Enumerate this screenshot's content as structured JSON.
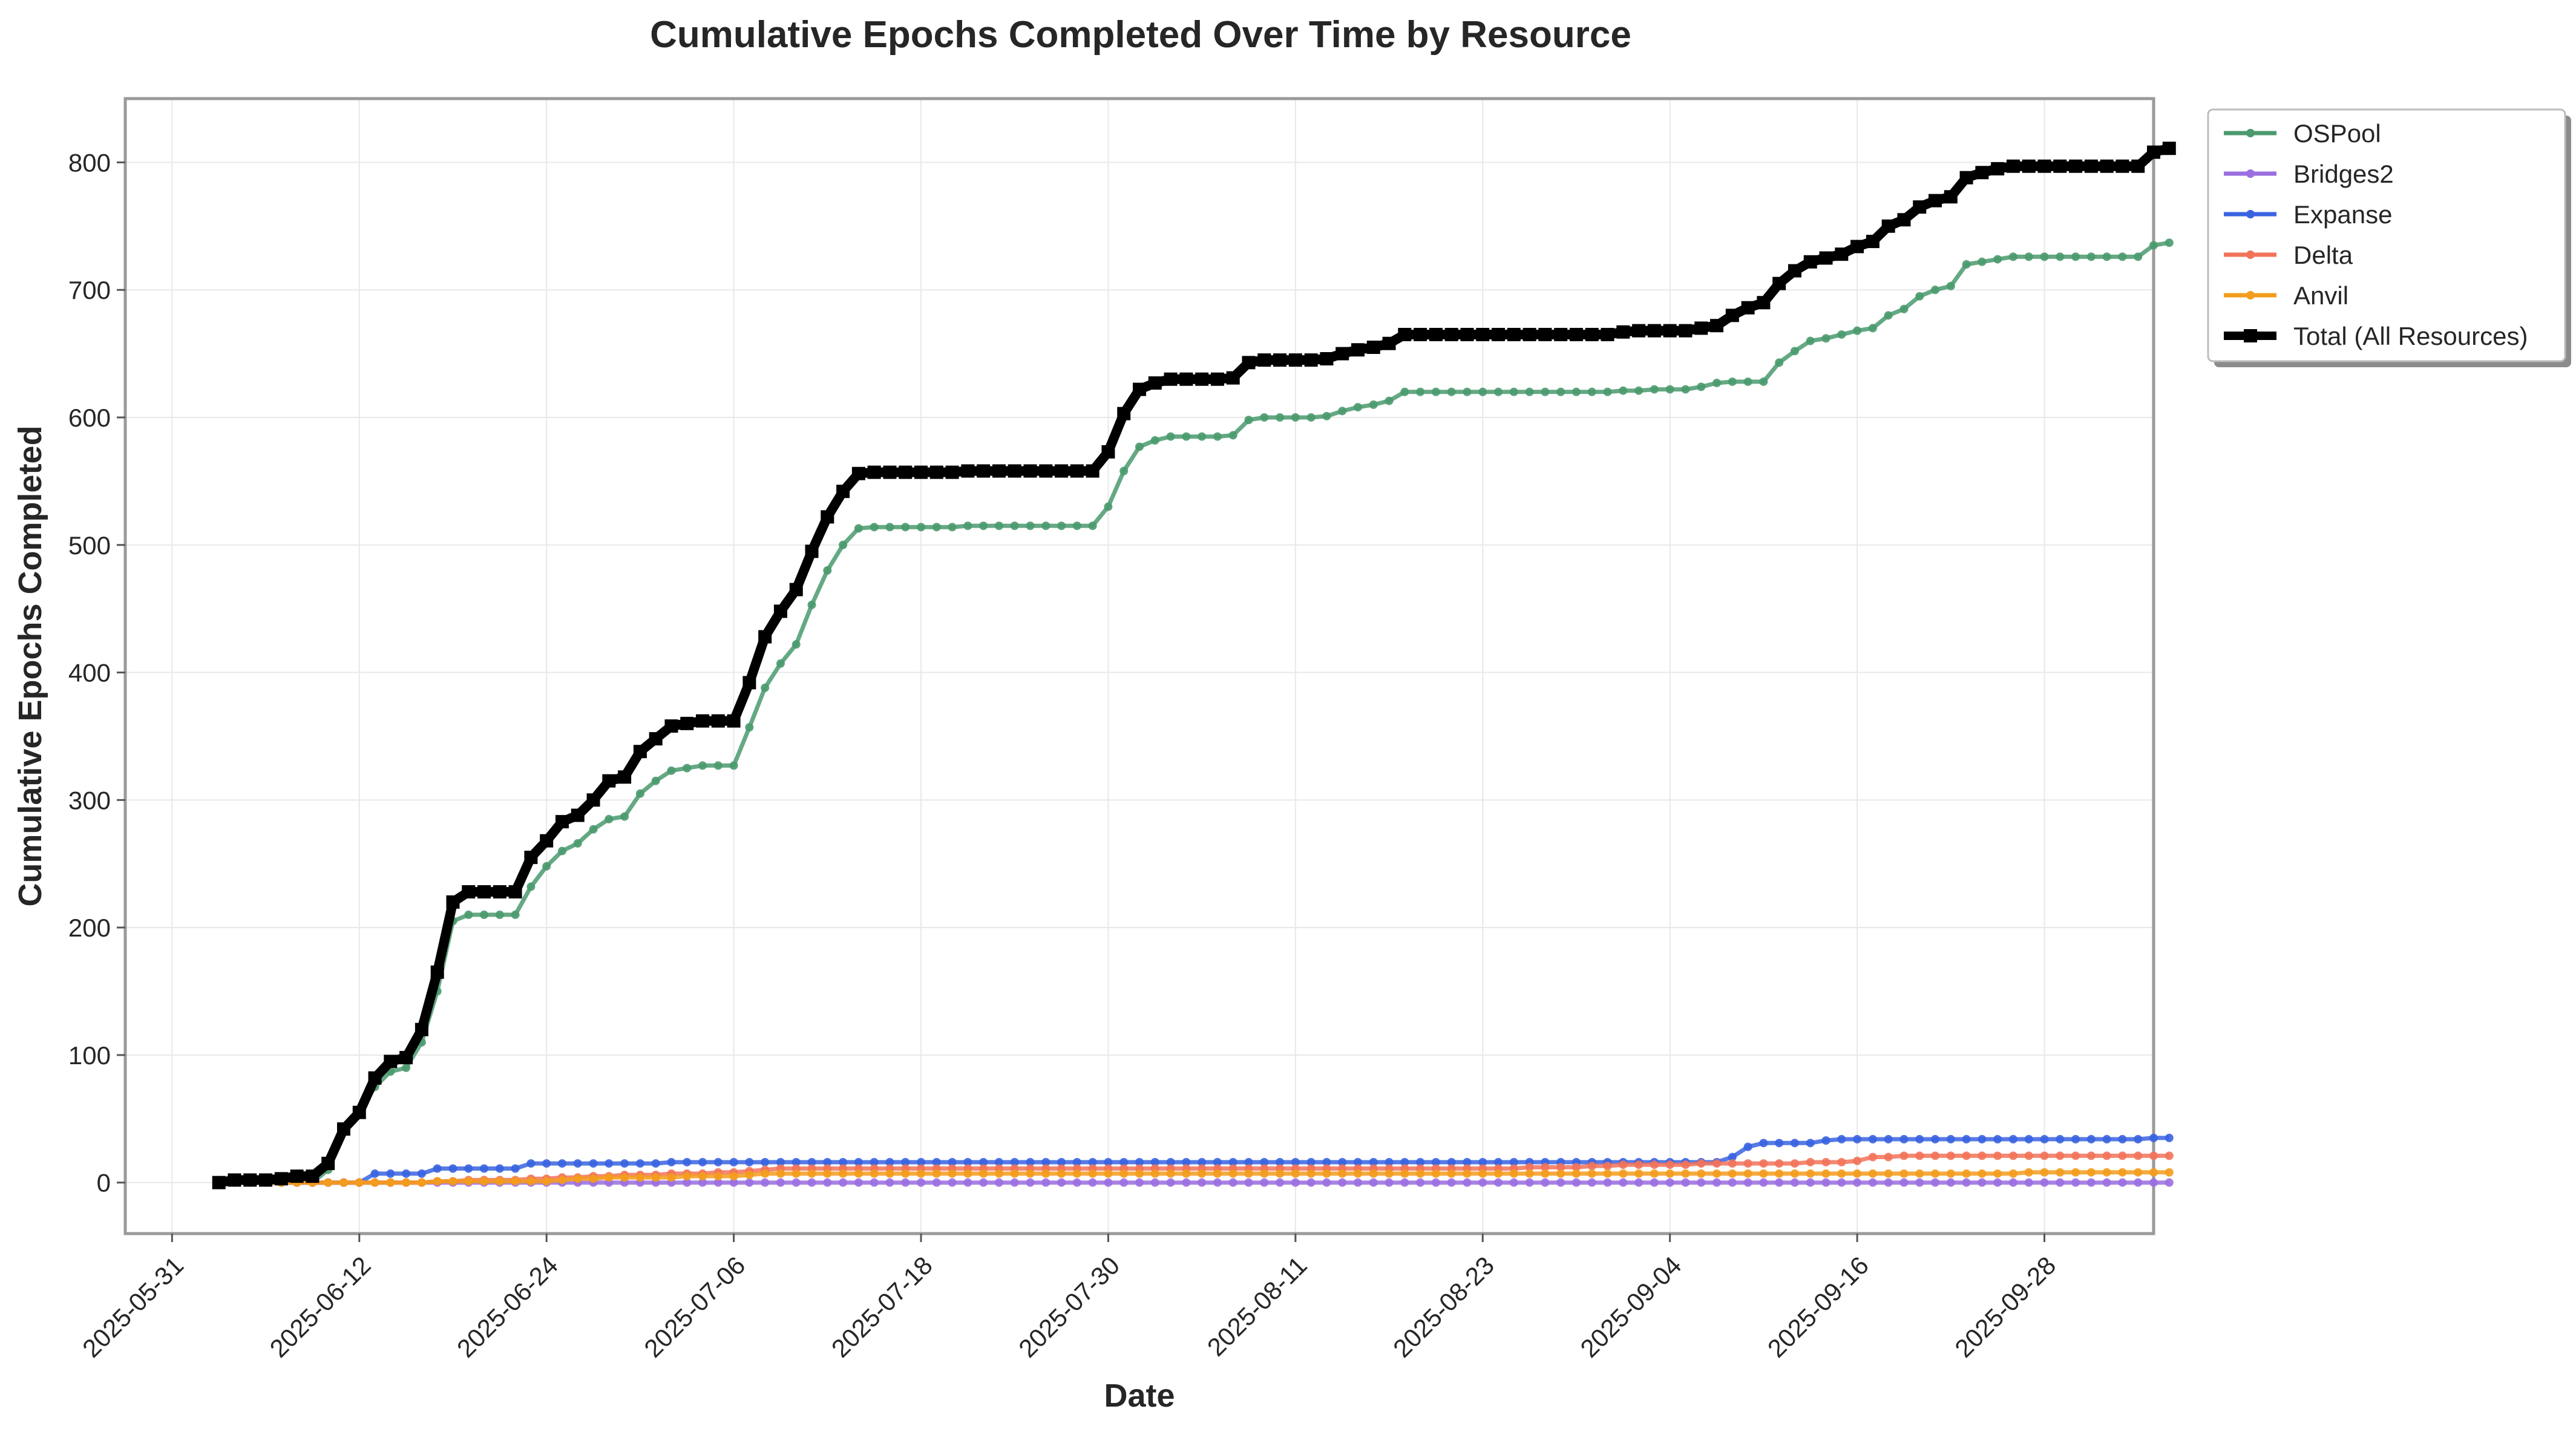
{
  "chart_data": {
    "type": "line",
    "title": "Cumulative Epochs Completed Over Time by Resource",
    "xlabel": "Date",
    "ylabel": "Cumulative Epochs Completed",
    "xlim": [
      "2025-05-28",
      "2025-10-05"
    ],
    "ylim": [
      -40,
      850
    ],
    "grid": true,
    "legend_position": "outside-top-right",
    "x_ticks": [
      "2025-05-31",
      "2025-06-12",
      "2025-06-24",
      "2025-07-06",
      "2025-07-18",
      "2025-07-30",
      "2025-08-11",
      "2025-08-23",
      "2025-09-04",
      "2025-09-16",
      "2025-09-28"
    ],
    "y_ticks": [
      0,
      100,
      200,
      300,
      400,
      500,
      600,
      700,
      800
    ],
    "start_date": "2025-06-03",
    "interval_days": 1,
    "series": [
      {
        "name": "OSPool",
        "color": "#4a9a6e",
        "marker": "circle",
        "values": [
          0,
          0,
          0,
          0,
          0,
          0,
          0,
          10,
          40,
          55,
          75,
          87,
          90,
          110,
          150,
          205,
          210,
          210,
          210,
          210,
          232,
          248,
          260,
          266,
          277,
          285,
          287,
          305,
          315,
          323,
          325,
          327,
          327,
          327,
          357,
          388,
          407,
          422,
          453,
          480,
          500,
          513,
          514,
          514,
          514,
          514,
          514,
          514,
          515,
          515,
          515,
          515,
          515,
          515,
          515,
          515,
          515,
          530,
          558,
          577,
          582,
          585,
          585,
          585,
          585,
          586,
          598,
          600,
          600,
          600,
          600,
          601,
          605,
          608,
          610,
          613,
          620,
          620,
          620,
          620,
          620,
          620,
          620,
          620,
          620,
          620,
          620,
          620,
          620,
          620,
          621,
          621,
          622,
          622,
          622,
          624,
          627,
          628,
          628,
          628,
          643,
          652,
          660,
          662,
          665,
          668,
          670,
          680,
          685,
          695,
          700,
          703,
          720,
          722,
          724,
          726,
          726,
          726,
          726,
          726,
          726,
          726,
          726,
          726,
          735,
          737
        ]
      },
      {
        "name": "Bridges2",
        "color": "#9b6fe0",
        "marker": "circle",
        "values": [
          0,
          0,
          0,
          0,
          0,
          0,
          0,
          0,
          0,
          0,
          0,
          0,
          0,
          0,
          0,
          0,
          0,
          0,
          0,
          0,
          0,
          0,
          0,
          0,
          0,
          0,
          0,
          0,
          0,
          0,
          0,
          0,
          0,
          0,
          0,
          0,
          0,
          0,
          0,
          0,
          0,
          0,
          0,
          0,
          0,
          0,
          0,
          0,
          0,
          0,
          0,
          0,
          0,
          0,
          0,
          0,
          0,
          0,
          0,
          0,
          0,
          0,
          0,
          0,
          0,
          0,
          0,
          0,
          0,
          0,
          0,
          0,
          0,
          0,
          0,
          0,
          0,
          0,
          0,
          0,
          0,
          0,
          0,
          0,
          0,
          0,
          0,
          0,
          0,
          0,
          0,
          0,
          0,
          0,
          0,
          0,
          0,
          0,
          0,
          0,
          0,
          0,
          0,
          0,
          0,
          0,
          0,
          0,
          0,
          0,
          0,
          0,
          0,
          0,
          0,
          0,
          0,
          0,
          0,
          0,
          0,
          0,
          0,
          0,
          0,
          0
        ]
      },
      {
        "name": "Expanse",
        "color": "#3a63e0",
        "marker": "circle",
        "values": [
          0,
          0,
          0,
          0,
          0,
          0,
          0,
          0,
          0,
          0,
          7,
          7,
          7,
          7,
          11,
          11,
          11,
          11,
          11,
          11,
          15,
          15,
          15,
          15,
          15,
          15,
          15,
          15,
          15,
          16,
          16,
          16,
          16,
          16,
          16,
          16,
          16,
          16,
          16,
          16,
          16,
          16,
          16,
          16,
          16,
          16,
          16,
          16,
          16,
          16,
          16,
          16,
          16,
          16,
          16,
          16,
          16,
          16,
          16,
          16,
          16,
          16,
          16,
          16,
          16,
          16,
          16,
          16,
          16,
          16,
          16,
          16,
          16,
          16,
          16,
          16,
          16,
          16,
          16,
          16,
          16,
          16,
          16,
          16,
          16,
          16,
          16,
          16,
          16,
          16,
          16,
          16,
          16,
          16,
          16,
          16,
          16,
          20,
          28,
          31,
          31,
          31,
          31,
          33,
          34,
          34,
          34,
          34,
          34,
          34,
          34,
          34,
          34,
          34,
          34,
          34,
          34,
          34,
          34,
          34,
          34,
          34,
          34,
          34,
          35,
          35
        ]
      },
      {
        "name": "Delta",
        "color": "#f2735a",
        "marker": "circle",
        "values": [
          0,
          0,
          0,
          0,
          0,
          0,
          0,
          0,
          0,
          0,
          0,
          0,
          0,
          0,
          1,
          1,
          2,
          2,
          2,
          2,
          3,
          3,
          4,
          4,
          5,
          5,
          6,
          6,
          6,
          7,
          7,
          7,
          8,
          8,
          9,
          10,
          11,
          11,
          11,
          11,
          11,
          11,
          11,
          11,
          11,
          11,
          11,
          11,
          11,
          11,
          11,
          11,
          11,
          11,
          11,
          11,
          11,
          11,
          11,
          11,
          11,
          11,
          11,
          11,
          11,
          11,
          11,
          11,
          11,
          11,
          11,
          11,
          11,
          11,
          11,
          11,
          11,
          11,
          11,
          11,
          11,
          11,
          11,
          11,
          12,
          12,
          12,
          12,
          13,
          13,
          14,
          14,
          14,
          14,
          14,
          15,
          15,
          15,
          15,
          15,
          15,
          15,
          16,
          16,
          16,
          17,
          20,
          20,
          21,
          21,
          21,
          21,
          21,
          21,
          21,
          21,
          21,
          21,
          21,
          21,
          21,
          21,
          21,
          21,
          21,
          21
        ]
      },
      {
        "name": "Anvil",
        "color": "#f39c1d",
        "marker": "circle",
        "values": [
          0,
          0,
          0,
          0,
          0,
          0,
          0,
          0,
          0,
          0,
          0,
          0,
          0,
          0,
          1,
          1,
          1,
          1,
          1,
          1,
          1,
          1,
          2,
          3,
          3,
          4,
          4,
          4,
          4,
          4,
          5,
          5,
          5,
          5,
          6,
          7,
          7,
          7,
          7,
          7,
          7,
          7,
          7,
          7,
          7,
          7,
          7,
          7,
          7,
          7,
          7,
          7,
          7,
          7,
          7,
          7,
          7,
          7,
          7,
          7,
          7,
          7,
          7,
          7,
          7,
          7,
          7,
          7,
          7,
          7,
          7,
          7,
          7,
          7,
          7,
          7,
          7,
          7,
          7,
          7,
          7,
          7,
          7,
          7,
          7,
          7,
          7,
          7,
          7,
          7,
          7,
          7,
          7,
          7,
          7,
          7,
          7,
          7,
          7,
          7,
          7,
          7,
          7,
          7,
          7,
          7,
          7,
          7,
          7,
          7,
          7,
          7,
          7,
          7,
          7,
          7,
          8,
          8,
          8,
          8,
          8,
          8,
          8,
          8,
          8,
          8
        ]
      },
      {
        "name": "Total (All Resources)",
        "color": "#000000",
        "marker": "square",
        "values": [
          0,
          2,
          2,
          2,
          3,
          5,
          5,
          15,
          42,
          55,
          82,
          95,
          98,
          120,
          165,
          220,
          228,
          228,
          228,
          228,
          255,
          268,
          283,
          288,
          300,
          315,
          318,
          338,
          348,
          358,
          360,
          362,
          362,
          362,
          392,
          428,
          448,
          465,
          495,
          522,
          542,
          556,
          557,
          557,
          557,
          557,
          557,
          557,
          558,
          558,
          558,
          558,
          558,
          558,
          558,
          558,
          558,
          573,
          603,
          622,
          627,
          630,
          630,
          630,
          630,
          631,
          643,
          645,
          645,
          645,
          645,
          646,
          650,
          653,
          655,
          658,
          665,
          665,
          665,
          665,
          665,
          665,
          665,
          665,
          665,
          665,
          665,
          665,
          665,
          665,
          667,
          668,
          668,
          668,
          668,
          670,
          672,
          680,
          686,
          690,
          705,
          715,
          722,
          725,
          728,
          734,
          738,
          750,
          755,
          765,
          770,
          773,
          788,
          792,
          795,
          797,
          797,
          797,
          797,
          797,
          797,
          797,
          797,
          797,
          808,
          811
        ]
      }
    ]
  }
}
